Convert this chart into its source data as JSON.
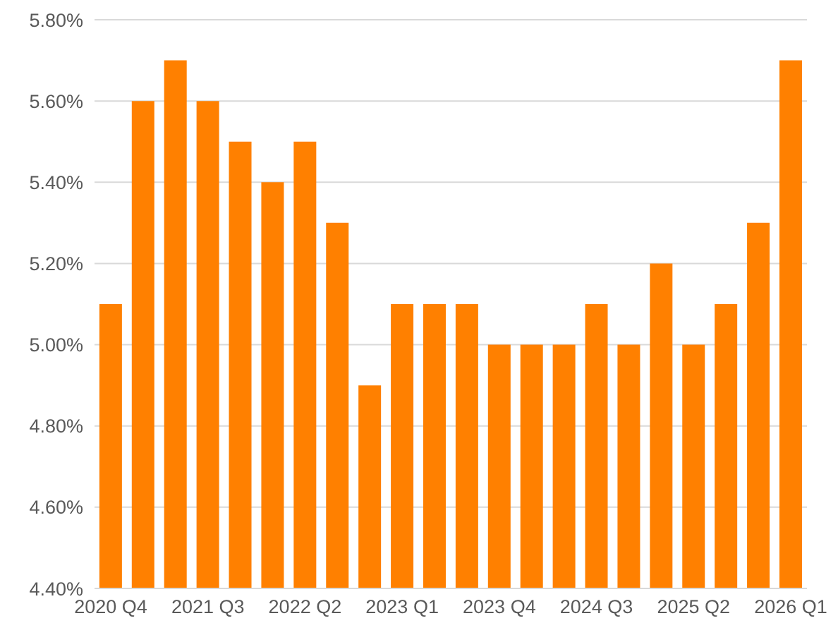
{
  "chart_data": {
    "type": "bar",
    "categories": [
      "2020 Q4",
      null,
      null,
      "2021 Q3",
      null,
      null,
      "2022 Q2",
      null,
      null,
      "2023 Q1",
      null,
      null,
      "2023 Q4",
      null,
      null,
      "2024 Q3",
      null,
      null,
      "2025 Q2",
      null,
      null,
      "2026 Q1"
    ],
    "values": [
      5.1,
      5.6,
      5.7,
      5.6,
      5.5,
      5.4,
      5.5,
      5.3,
      4.9,
      5.1,
      5.1,
      5.1,
      5.0,
      5.0,
      5.0,
      5.1,
      5.0,
      5.2,
      5.0,
      5.1,
      5.3,
      5.7
    ],
    "color": "#ff8000",
    "ylim": [
      4.4,
      5.8
    ],
    "yticks": [
      {
        "value": 4.4,
        "label": "4.40%"
      },
      {
        "value": 4.6,
        "label": "4.60%"
      },
      {
        "value": 4.8,
        "label": "4.80%"
      },
      {
        "value": 5.0,
        "label": "5.00%"
      },
      {
        "value": 5.2,
        "label": "5.20%"
      },
      {
        "value": 5.4,
        "label": "5.40%"
      },
      {
        "value": 5.6,
        "label": "5.60%"
      },
      {
        "value": 5.8,
        "label": "5.80%"
      }
    ],
    "grid": "y"
  }
}
